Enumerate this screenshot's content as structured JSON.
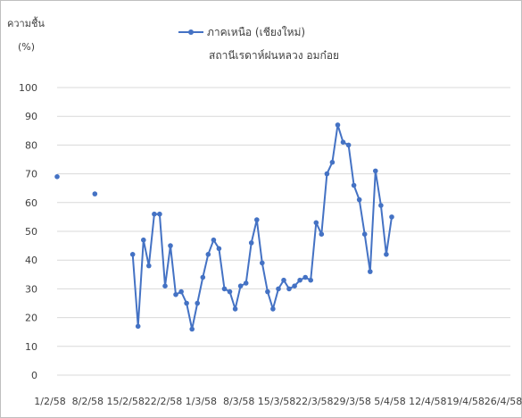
{
  "chart_data": {
    "type": "line",
    "title": "สถานีเรดาห์ฝนหลวง อมก๋อย",
    "ylabel": "ความชื้น",
    "yunit": "(%)",
    "ylim": [
      0,
      100
    ],
    "yticks": [
      0,
      10,
      20,
      30,
      40,
      50,
      60,
      70,
      80,
      90,
      100
    ],
    "xticks": [
      "1/2/58",
      "8/2/58",
      "15/2/58",
      "22/2/58",
      "1/3/58",
      "8/3/58",
      "15/3/58",
      "22/3/58",
      "29/3/58",
      "5/4/58",
      "12/4/58",
      "19/4/58",
      "26/4/58"
    ],
    "x_start": "2015-02-01",
    "x_end": "2015-04-26",
    "grid": true,
    "legend_position": "top",
    "color": "#4472c4",
    "series": [
      {
        "name": "ภาคเหนือ (เชียงใหม่)",
        "points": [
          [
            "2015-02-01",
            69
          ],
          [
            "2015-02-08",
            63
          ],
          [
            "2015-02-15",
            42
          ],
          [
            "2015-02-16",
            17
          ],
          [
            "2015-02-17",
            47
          ],
          [
            "2015-02-18",
            38
          ],
          [
            "2015-02-19",
            56
          ],
          [
            "2015-02-20",
            56
          ],
          [
            "2015-02-21",
            31
          ],
          [
            "2015-02-22",
            45
          ],
          [
            "2015-02-23",
            28
          ],
          [
            "2015-02-24",
            29
          ],
          [
            "2015-02-25",
            25
          ],
          [
            "2015-02-26",
            16
          ],
          [
            "2015-02-27",
            25
          ],
          [
            "2015-02-28",
            34
          ],
          [
            "2015-03-01",
            42
          ],
          [
            "2015-03-02",
            47
          ],
          [
            "2015-03-03",
            44
          ],
          [
            "2015-03-04",
            30
          ],
          [
            "2015-03-05",
            29
          ],
          [
            "2015-03-06",
            23
          ],
          [
            "2015-03-07",
            31
          ],
          [
            "2015-03-08",
            32
          ],
          [
            "2015-03-09",
            46
          ],
          [
            "2015-03-10",
            54
          ],
          [
            "2015-03-11",
            39
          ],
          [
            "2015-03-12",
            29
          ],
          [
            "2015-03-13",
            23
          ],
          [
            "2015-03-14",
            30
          ],
          [
            "2015-03-15",
            33
          ],
          [
            "2015-03-16",
            30
          ],
          [
            "2015-03-17",
            31
          ],
          [
            "2015-03-18",
            33
          ],
          [
            "2015-03-19",
            34
          ],
          [
            "2015-03-20",
            33
          ],
          [
            "2015-03-21",
            53
          ],
          [
            "2015-03-22",
            49
          ],
          [
            "2015-03-23",
            70
          ],
          [
            "2015-03-24",
            74
          ],
          [
            "2015-03-25",
            87
          ],
          [
            "2015-03-26",
            81
          ],
          [
            "2015-03-27",
            80
          ],
          [
            "2015-03-28",
            66
          ],
          [
            "2015-03-29",
            61
          ],
          [
            "2015-03-30",
            49
          ],
          [
            "2015-03-31",
            36
          ],
          [
            "2015-04-01",
            71
          ],
          [
            "2015-04-02",
            59
          ],
          [
            "2015-04-03",
            42
          ],
          [
            "2015-04-04",
            55
          ]
        ]
      }
    ]
  }
}
